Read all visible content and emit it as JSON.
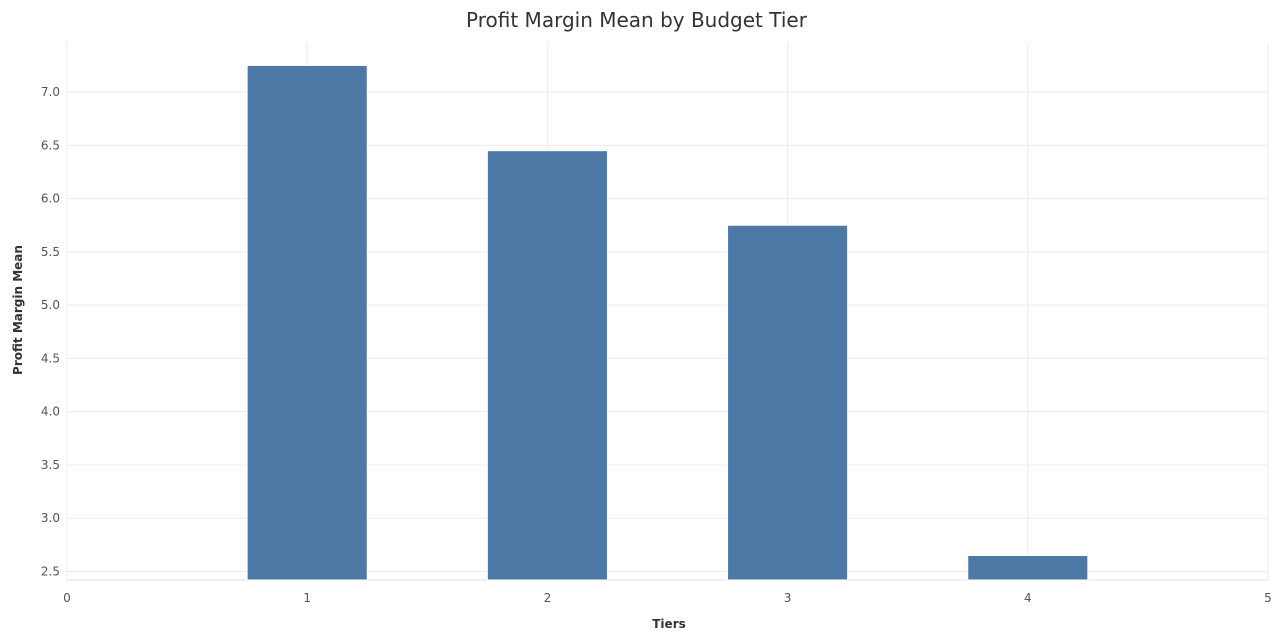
{
  "chart_data": {
    "type": "bar",
    "title": "Profit Margin Mean by Budget Tier",
    "xlabel": "Tiers",
    "ylabel": "Profit Margin Mean",
    "x": [
      1,
      2,
      3,
      4
    ],
    "values": [
      7.25,
      6.45,
      5.75,
      2.65
    ],
    "xlim": [
      0,
      5
    ],
    "ylim": [
      2.42,
      7.47
    ],
    "xticks": [
      0,
      1,
      2,
      3,
      4,
      5
    ],
    "yticks": [
      2.5,
      3.0,
      3.5,
      4.0,
      4.5,
      5.0,
      5.5,
      6.0,
      6.5,
      7.0
    ],
    "ytick_labels": [
      "2.5",
      "3.0",
      "3.5",
      "4.0",
      "4.5",
      "5.0",
      "5.5",
      "6.0",
      "6.5",
      "7.0"
    ],
    "grid": true,
    "legend": "none",
    "bar_color": "#4e79a7"
  }
}
